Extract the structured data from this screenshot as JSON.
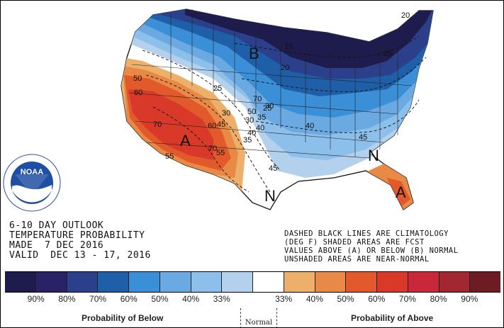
{
  "title": {
    "line1": "6-10 DAY OUTLOOK",
    "line2": "TEMPERATURE PROBABILITY",
    "line3": "MADE  7 DEC 2016",
    "line4": "VALID  DEC 13 - 17, 2016"
  },
  "notes": {
    "line1": "DASHED BLACK LINES ARE CLIMATOLOGY",
    "line2": "(DEG F) SHADED AREAS ARE FCST",
    "line3": "VALUES ABOVE (A) OR BELOW (B) NORMAL",
    "line4": "UNSHADED AREAS ARE NEAR-NORMAL"
  },
  "logo": {
    "text": "NOAA",
    "ring_text": "NATIONAL OCEANIC AND ATMOSPHERIC ADMINISTRATION · U.S. DEPARTMENT OF COMMERCE"
  },
  "map_labels": {
    "below_letter": "B",
    "above_letter_west": "A",
    "above_letter_florida": "A",
    "normal_letter_east": "N",
    "normal_letter_south": "N",
    "contours": [
      "50",
      "60",
      "70",
      "55",
      "70",
      "45",
      "40",
      "30",
      "25",
      "35",
      "40",
      "45",
      "50",
      "55",
      "60",
      "70",
      "15",
      "20",
      "25",
      "30",
      "35",
      "40",
      "45",
      "30",
      "20",
      "25"
    ]
  },
  "legend": {
    "colors": [
      "#1e1b4d",
      "#2a2266",
      "#2c3f8a",
      "#1f5fa8",
      "#3b8fd6",
      "#6aa9e2",
      "#8cc0ea",
      "#b3d0ec",
      "#ffffff",
      "#ecb06a",
      "#e88a45",
      "#e25a2b",
      "#d83928",
      "#c9283a",
      "#a12830",
      "#6e1c24"
    ],
    "ticks": [
      "90%",
      "80%",
      "70%",
      "60%",
      "50%",
      "40%",
      "33%",
      "33%",
      "40%",
      "50%",
      "60%",
      "70%",
      "80%",
      "90%"
    ],
    "below_label": "Probability of Below",
    "normal_label": "Normal",
    "above_label": "Probability of Above"
  }
}
